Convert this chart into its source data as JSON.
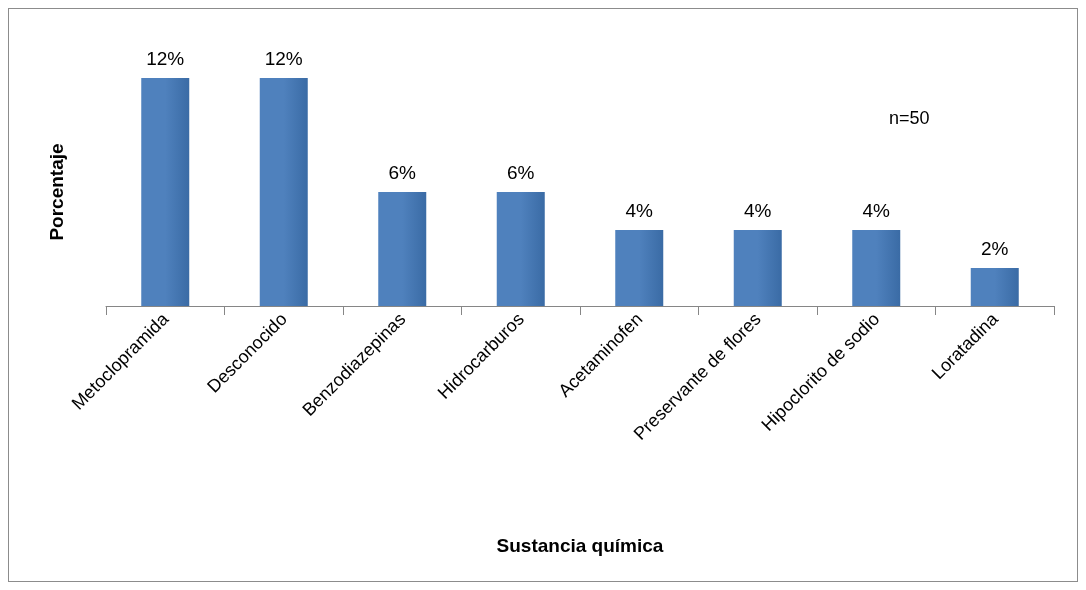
{
  "chart_data": {
    "type": "bar",
    "xlabel": "Sustancia química",
    "ylabel": "Porcentaje",
    "categories": [
      "Metoclopramida",
      "Desconocido",
      "Benzodiazepinas",
      "Hidrocarburos",
      "Acetaminofen",
      "Preservante de flores",
      "Hipoclorito de sodio",
      "Loratadina"
    ],
    "values": [
      12,
      12,
      6,
      6,
      4,
      4,
      4,
      2
    ],
    "value_labels": [
      "12%",
      "12%",
      "6%",
      "6%",
      "4%",
      "4%",
      "4%",
      "2%"
    ],
    "color": "#4f81bd",
    "grid": false,
    "annotations": [
      "n=50"
    ]
  }
}
